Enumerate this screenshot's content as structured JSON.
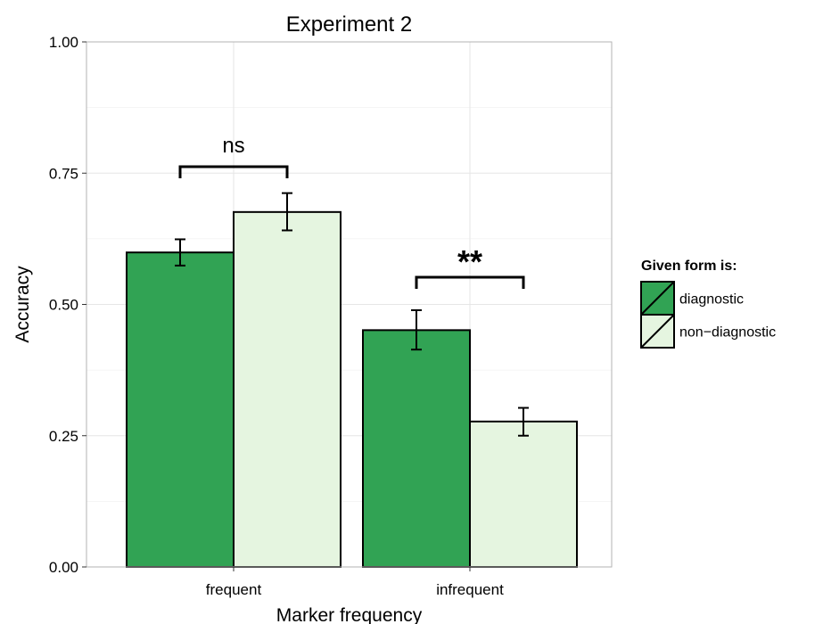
{
  "chart_data": {
    "type": "bar",
    "title": "Experiment 2",
    "xlabel": "Marker frequency",
    "ylabel": "Accuracy",
    "ylim": [
      0,
      1
    ],
    "yticks": [
      "0.00",
      "0.25",
      "0.50",
      "0.75",
      "1.00"
    ],
    "categories": [
      "frequent",
      "infrequent"
    ],
    "series": [
      {
        "name": "diagnostic",
        "color": "#31a354",
        "values": [
          0.599,
          0.451
        ],
        "error_low": [
          0.574,
          0.414
        ],
        "error_high": [
          0.624,
          0.489
        ]
      },
      {
        "name": "non−diagnostic",
        "color": "#e5f5e0",
        "values": [
          0.676,
          0.277
        ],
        "error_low": [
          0.641,
          0.25
        ],
        "error_high": [
          0.712,
          0.303
        ]
      }
    ],
    "annotations": [
      {
        "category": "frequent",
        "text": "ns"
      },
      {
        "category": "infrequent",
        "text": "**"
      }
    ],
    "legend": {
      "title": "Given form is:",
      "position": "right"
    },
    "grid": true
  }
}
